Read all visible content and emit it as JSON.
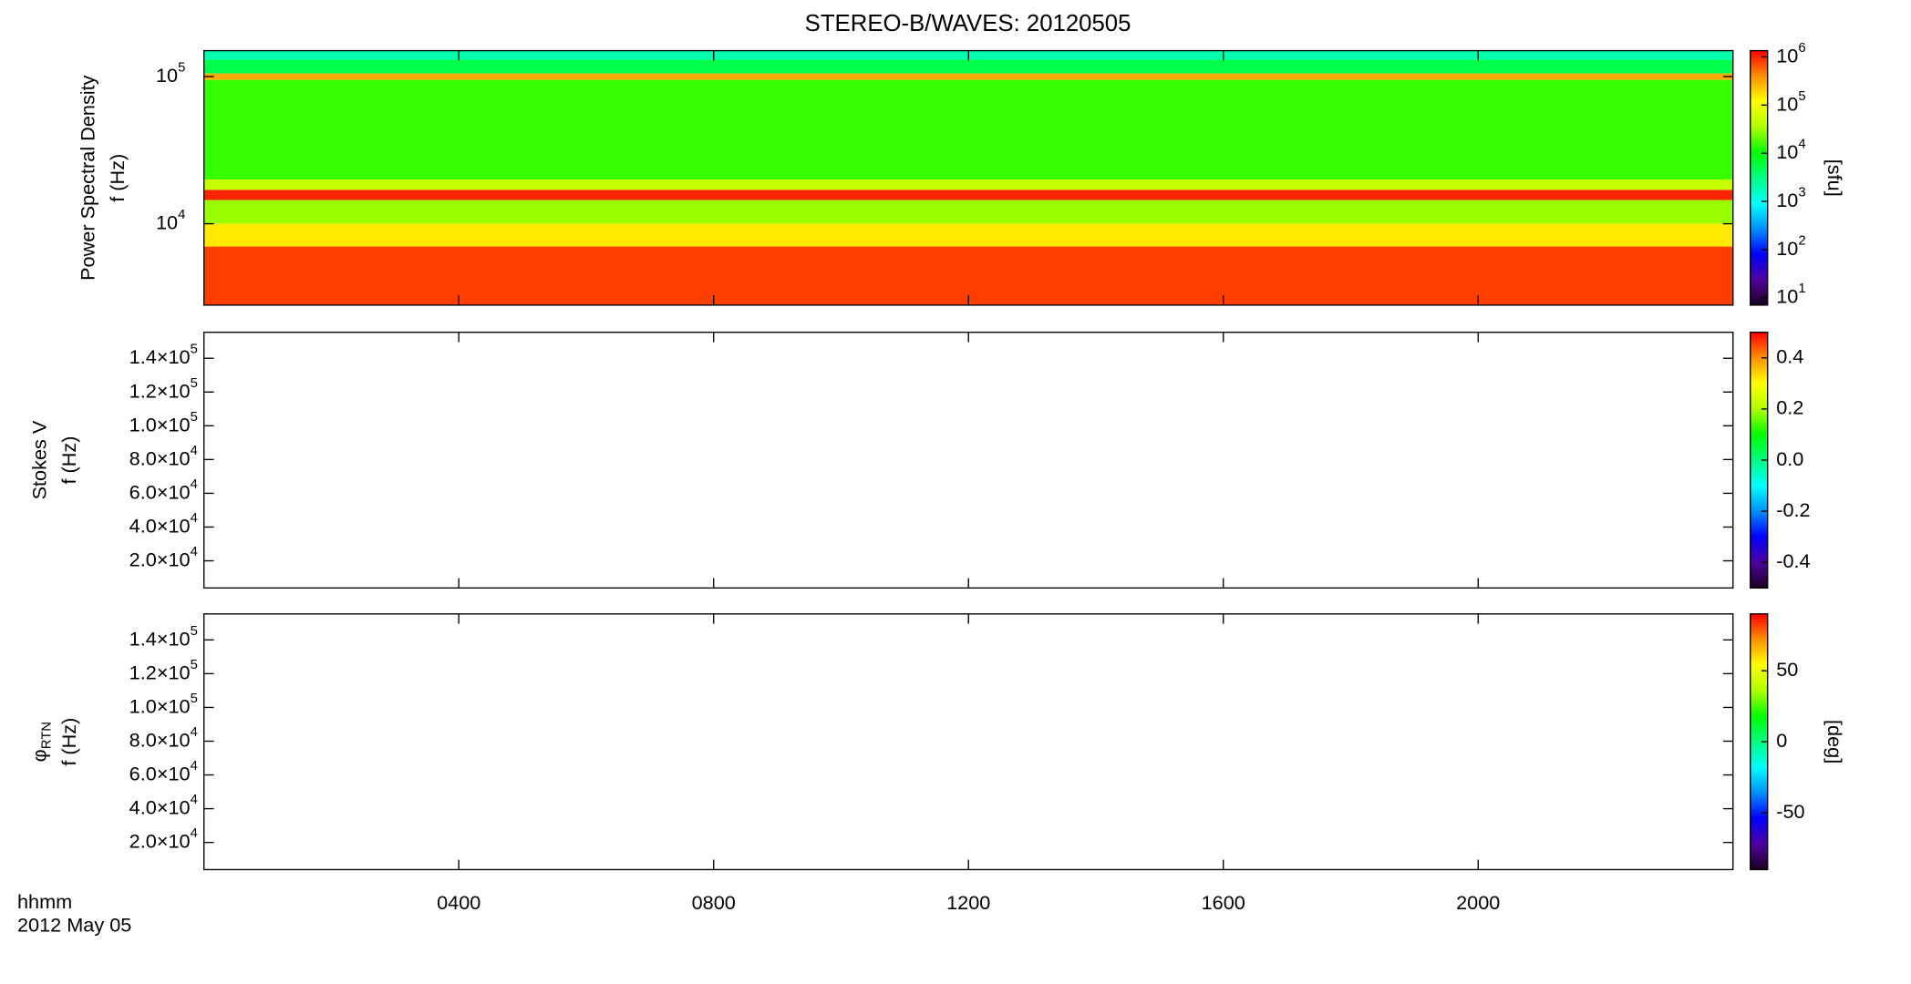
{
  "chart_data": [
    {
      "type": "heatmap",
      "title": "STEREO-B/WAVES: 20120505",
      "ylabel": [
        "Power Spectral Density",
        "f (Hz)"
      ],
      "xlim": [
        0,
        24
      ],
      "xticks": [
        {
          "value": 4,
          "label": "0400"
        },
        {
          "value": 8,
          "label": "0800"
        },
        {
          "value": 12,
          "label": "1200"
        },
        {
          "value": 16,
          "label": "1600"
        },
        {
          "value": 20,
          "label": "2000"
        }
      ],
      "ylim": [
        2800,
        150000
      ],
      "ylog": true,
      "yticks": [
        {
          "value": 10000,
          "label": "10^4"
        },
        {
          "value": 100000,
          "label": "10^5"
        }
      ],
      "bands": [
        2800,
        7000,
        10000,
        14500,
        17000,
        20000,
        95000,
        105000,
        130000,
        150000
      ],
      "values": [
        800000,
        150000,
        30000,
        1000000,
        50000,
        15000,
        300000,
        5000,
        2000
      ],
      "clim": [
        7,
        1350000
      ],
      "clog": true,
      "cticks": [
        {
          "value": 10,
          "label": "10^1"
        },
        {
          "value": 100,
          "label": "10^2"
        },
        {
          "value": 1000,
          "label": "10^3"
        },
        {
          "value": 10000,
          "label": "10^4"
        },
        {
          "value": 100000,
          "label": "10^5"
        },
        {
          "value": 1000000,
          "label": "10^6"
        }
      ],
      "clabel": "[sfu]",
      "colormap": [
        "#1a0020",
        "#5000a0",
        "#0000ff",
        "#0090ff",
        "#00ffff",
        "#00ff80",
        "#00ff00",
        "#b0ff00",
        "#ffff00",
        "#ff9000",
        "#ff0000"
      ]
    },
    {
      "type": "heatmap",
      "ylabel": [
        "Stokes V",
        "f (Hz)"
      ],
      "xlim": [
        0,
        24
      ],
      "xticks": [
        {
          "value": 4,
          "label": "0400"
        },
        {
          "value": 8,
          "label": "0800"
        },
        {
          "value": 12,
          "label": "1200"
        },
        {
          "value": 16,
          "label": "1600"
        },
        {
          "value": 20,
          "label": "2000"
        }
      ],
      "ylim": [
        3900,
        155400
      ],
      "yticks": [
        {
          "value": 20000,
          "label": "2.0×10^4"
        },
        {
          "value": 40000,
          "label": "4.0×10^4"
        },
        {
          "value": 60000,
          "label": "6.0×10^4"
        },
        {
          "value": 80000,
          "label": "8.0×10^4"
        },
        {
          "value": 100000,
          "label": "1.0×10^5"
        },
        {
          "value": 120000,
          "label": "1.2×10^5"
        },
        {
          "value": 140000,
          "label": "1.4×10^5"
        }
      ],
      "clim": [
        -0.5,
        0.5
      ],
      "cticks": [
        -0.4,
        -0.2,
        {
          "value": 0,
          "label": "0.0"
        },
        0.2,
        0.4
      ],
      "colormap": [
        "#1a0020",
        "#5000a0",
        "#0000ff",
        "#0090ff",
        "#00ffff",
        "#00ff80",
        "#00ff00",
        "#b0ff00",
        "#ffff00",
        "#ff9000",
        "#ff0000"
      ]
    },
    {
      "type": "heatmap",
      "ylabel": [
        "φ_RTN",
        "f (Hz)"
      ],
      "xlim": [
        0,
        24
      ],
      "xticks": [
        {
          "value": 4,
          "label": "0400"
        },
        {
          "value": 8,
          "label": "0800"
        },
        {
          "value": 12,
          "label": "1200"
        },
        {
          "value": 16,
          "label": "1600"
        },
        {
          "value": 20,
          "label": "2000"
        }
      ],
      "ylim": [
        3900,
        155400
      ],
      "yticks": [
        {
          "value": 20000,
          "label": "2.0×10^4"
        },
        {
          "value": 40000,
          "label": "4.0×10^4"
        },
        {
          "value": 60000,
          "label": "6.0×10^4"
        },
        {
          "value": 80000,
          "label": "8.0×10^4"
        },
        {
          "value": 100000,
          "label": "1.0×10^5"
        },
        {
          "value": 120000,
          "label": "1.2×10^5"
        },
        {
          "value": 140000,
          "label": "1.4×10^5"
        }
      ],
      "clim": [
        -90,
        90
      ],
      "cticks": [
        -50,
        0,
        50
      ],
      "clabel": "[deg]",
      "xlabel": "hhmm",
      "date_label": "2012 May 05",
      "colormap": [
        "#1a0020",
        "#5000a0",
        "#0000ff",
        "#0090ff",
        "#00ffff",
        "#00ff80",
        "#00ff00",
        "#b0ff00",
        "#ffff00",
        "#ff9000",
        "#ff0000"
      ]
    }
  ]
}
